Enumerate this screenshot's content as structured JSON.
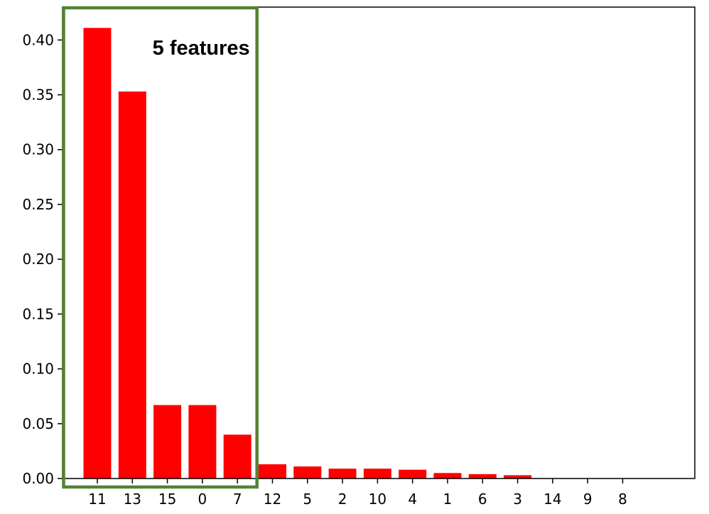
{
  "chart_data": {
    "type": "bar",
    "title": "",
    "xlabel": "",
    "ylabel": "",
    "categories": [
      "11",
      "13",
      "15",
      "0",
      "7",
      "12",
      "5",
      "2",
      "10",
      "4",
      "1",
      "6",
      "3",
      "14",
      "9",
      "8"
    ],
    "values": [
      0.411,
      0.353,
      0.067,
      0.067,
      0.04,
      0.013,
      0.011,
      0.009,
      0.009,
      0.008,
      0.005,
      0.004,
      0.003,
      0.0,
      0.0,
      0.0
    ],
    "ylim": [
      0,
      0.43
    ],
    "yticks": [
      "0.00",
      "0.05",
      "0.10",
      "0.15",
      "0.20",
      "0.25",
      "0.30",
      "0.35",
      "0.40"
    ],
    "bar_color": "#ff0000",
    "highlight": {
      "label": "5 features",
      "first_category": "11",
      "last_category": "7",
      "color": "#548235"
    }
  }
}
